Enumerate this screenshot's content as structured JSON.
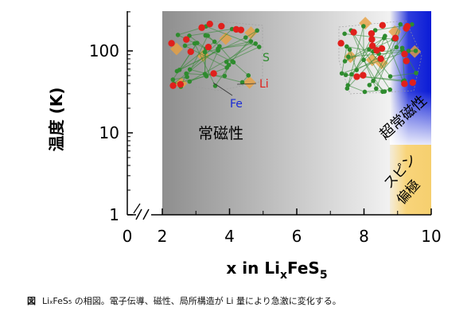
{
  "chart_data": {
    "type": "heatmap",
    "title": "",
    "xlabel": {
      "prefix": "x in Li",
      "sub1": "x",
      "mid": "FeS",
      "sub2": "5"
    },
    "ylabel": "温度 (K)",
    "x_ticks": [
      "0",
      "2",
      "4",
      "6",
      "8",
      "10"
    ],
    "y_ticks": [
      "1",
      "10",
      "100"
    ],
    "y_scale": "log",
    "xlim": [
      2,
      10
    ],
    "ylim": [
      1,
      300
    ],
    "x_axis_break": {
      "between": [
        0,
        2
      ],
      "mark": "//"
    },
    "y_axis_break": {
      "at": 1,
      "mark": "//"
    },
    "regions": [
      {
        "name": "常磁性",
        "x_range": [
          2,
          10
        ],
        "y_range": [
          1,
          300
        ],
        "color_gradient": [
          "#8c8c8c",
          "#ffffff"
        ]
      },
      {
        "name": "超常磁性",
        "x_range": [
          9,
          10
        ],
        "y_range": [
          7,
          300
        ],
        "color": "#0a1bd6"
      },
      {
        "name": "スピン偏極",
        "x_range": [
          9,
          10
        ],
        "y_range": [
          1,
          7
        ],
        "color": "#f8d47a"
      }
    ],
    "annotations": {
      "paramagnetic": "常磁性",
      "superparamagnetic": "超常磁性",
      "spin_polarized_1": "スピン",
      "spin_polarized_2": "偏極",
      "atom_S": "S",
      "atom_Li": "Li",
      "atom_Fe": "Fe"
    },
    "atom_colors": {
      "S": "#2e8b2e",
      "Li": "#e0201c",
      "Fe": "#1a2bd6",
      "polyhedra": "#e8a040"
    }
  },
  "caption": {
    "label": "図",
    "t1": "Li",
    "t1_sub": "x",
    "t2": "FeS",
    "t2_sub": "5",
    "t3": " の相図。電子伝導、磁性、局所構造が Li 量により急激に変化する。"
  }
}
